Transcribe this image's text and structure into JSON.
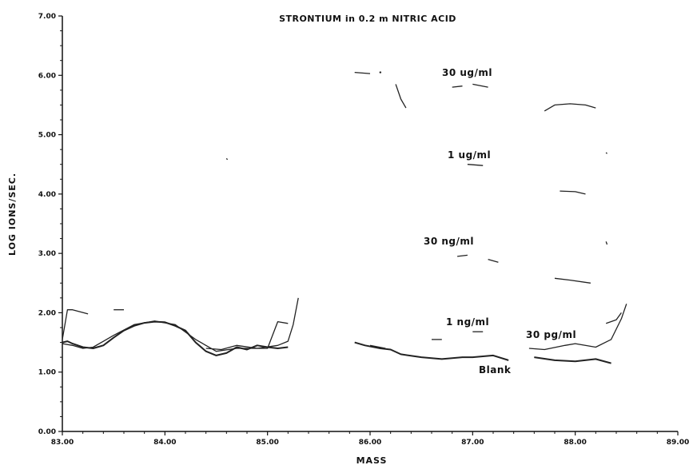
{
  "chart_data": {
    "type": "line",
    "title": "STRONTIUM in 0.2 m NITRIC ACID",
    "xlabel": "MASS",
    "ylabel": "LOG IONS/SEC.",
    "xlim": [
      83.0,
      89.0
    ],
    "ylim": [
      0.0,
      7.0
    ],
    "x_ticks": [
      "83.00",
      "84.00",
      "85.00",
      "86.00",
      "87.00",
      "88.00",
      "89.00"
    ],
    "y_ticks": [
      "0.00",
      "1.00",
      "2.00",
      "3.00",
      "4.00",
      "5.00",
      "6.00",
      "7.00"
    ],
    "grid": false,
    "annotations": [
      "30 ug/ml",
      "1 ug/ml",
      "30 ng/ml",
      "1 ng/ml",
      "30 pg/ml",
      "Blank"
    ],
    "series": [
      {
        "name": "Blank",
        "segments": [
          [
            [
              83.0,
              1.5
            ],
            [
              83.05,
              1.52
            ],
            [
              83.1,
              1.48
            ],
            [
              83.2,
              1.42
            ],
            [
              83.3,
              1.4
            ],
            [
              83.4,
              1.45
            ],
            [
              83.5,
              1.58
            ],
            [
              83.6,
              1.7
            ],
            [
              83.7,
              1.78
            ],
            [
              83.8,
              1.83
            ],
            [
              83.9,
              1.85
            ],
            [
              84.0,
              1.84
            ],
            [
              84.1,
              1.78
            ],
            [
              84.2,
              1.7
            ],
            [
              84.3,
              1.5
            ],
            [
              84.4,
              1.35
            ],
            [
              84.5,
              1.28
            ],
            [
              84.6,
              1.32
            ],
            [
              84.7,
              1.42
            ],
            [
              84.8,
              1.38
            ],
            [
              84.9,
              1.45
            ],
            [
              85.0,
              1.42
            ],
            [
              85.1,
              1.4
            ],
            [
              85.2,
              1.42
            ]
          ],
          [
            [
              85.85,
              1.5
            ],
            [
              85.95,
              1.45
            ],
            [
              86.1,
              1.4
            ],
            [
              86.2,
              1.38
            ],
            [
              86.3,
              1.3
            ],
            [
              86.5,
              1.25
            ],
            [
              86.7,
              1.22
            ],
            [
              86.9,
              1.25
            ],
            [
              87.0,
              1.25
            ],
            [
              87.2,
              1.28
            ],
            [
              87.35,
              1.2
            ]
          ],
          [
            [
              87.6,
              1.25
            ],
            [
              87.8,
              1.2
            ],
            [
              88.0,
              1.18
            ],
            [
              88.2,
              1.22
            ],
            [
              88.35,
              1.15
            ]
          ]
        ]
      },
      {
        "name": "30 pg/ml",
        "segments": [
          [
            [
              83.0,
              1.48
            ],
            [
              83.1,
              1.45
            ],
            [
              83.2,
              1.4
            ],
            [
              83.3,
              1.42
            ],
            [
              83.5,
              1.62
            ],
            [
              83.7,
              1.8
            ],
            [
              83.9,
              1.86
            ],
            [
              84.1,
              1.8
            ],
            [
              84.3,
              1.55
            ],
            [
              84.5,
              1.35
            ],
            [
              84.7,
              1.4
            ],
            [
              84.9,
              1.4
            ],
            [
              85.1,
              1.45
            ],
            [
              85.2,
              1.52
            ],
            [
              85.25,
              1.8
            ],
            [
              85.3,
              2.25
            ]
          ],
          [
            [
              87.55,
              1.4
            ],
            [
              87.7,
              1.38
            ],
            [
              87.9,
              1.45
            ],
            [
              88.0,
              1.48
            ],
            [
              88.2,
              1.42
            ],
            [
              88.35,
              1.55
            ],
            [
              88.45,
              1.9
            ],
            [
              88.5,
              2.15
            ]
          ]
        ]
      },
      {
        "name": "1 ng/ml",
        "segments": [
          [
            [
              83.0,
              1.55
            ],
            [
              83.05,
              2.05
            ],
            [
              83.1,
              2.05
            ],
            [
              83.25,
              1.98
            ]
          ],
          [
            [
              83.5,
              2.05
            ],
            [
              83.6,
              2.05
            ]
          ],
          [
            [
              84.4,
              1.4
            ],
            [
              84.55,
              1.38
            ],
            [
              84.7,
              1.45
            ],
            [
              84.9,
              1.4
            ],
            [
              85.0,
              1.4
            ],
            [
              85.1,
              1.85
            ],
            [
              85.2,
              1.82
            ]
          ],
          [
            [
              86.0,
              1.45
            ],
            [
              86.15,
              1.4
            ]
          ],
          [
            [
              86.6,
              1.55
            ],
            [
              86.7,
              1.55
            ]
          ],
          [
            [
              87.0,
              1.68
            ],
            [
              87.1,
              1.68
            ]
          ],
          [
            [
              88.3,
              1.82
            ],
            [
              88.4,
              1.88
            ],
            [
              88.45,
              2.0
            ]
          ]
        ]
      },
      {
        "name": "30 ng/ml",
        "segments": [
          [
            [
              86.85,
              2.95
            ],
            [
              86.95,
              2.97
            ]
          ],
          [
            [
              87.15,
              2.9
            ],
            [
              87.25,
              2.85
            ]
          ],
          [
            [
              87.8,
              2.58
            ],
            [
              87.95,
              2.55
            ],
            [
              88.15,
              2.5
            ]
          ],
          [
            [
              88.3,
              3.2
            ],
            [
              88.31,
              3.15
            ]
          ]
        ]
      },
      {
        "name": "1 ug/ml",
        "segments": [
          [
            [
              84.6,
              4.6
            ],
            [
              84.61,
              4.58
            ]
          ],
          [
            [
              86.95,
              4.5
            ],
            [
              87.1,
              4.48
            ]
          ],
          [
            [
              87.85,
              4.05
            ],
            [
              88.0,
              4.04
            ],
            [
              88.1,
              4.0
            ]
          ],
          [
            [
              88.3,
              4.7
            ],
            [
              88.31,
              4.68
            ]
          ]
        ]
      },
      {
        "name": "30 ug/ml",
        "segments": [
          [
            [
              85.85,
              6.05
            ],
            [
              86.0,
              6.03
            ]
          ],
          [
            [
              86.1,
              6.05
            ]
          ],
          [
            [
              86.25,
              5.85
            ],
            [
              86.3,
              5.6
            ],
            [
              86.35,
              5.45
            ]
          ],
          [
            [
              86.8,
              5.8
            ],
            [
              86.9,
              5.82
            ]
          ],
          [
            [
              87.0,
              5.85
            ],
            [
              87.15,
              5.8
            ]
          ],
          [
            [
              87.7,
              5.4
            ],
            [
              87.8,
              5.5
            ],
            [
              87.95,
              5.52
            ],
            [
              88.1,
              5.5
            ],
            [
              88.2,
              5.45
            ]
          ]
        ]
      }
    ]
  }
}
